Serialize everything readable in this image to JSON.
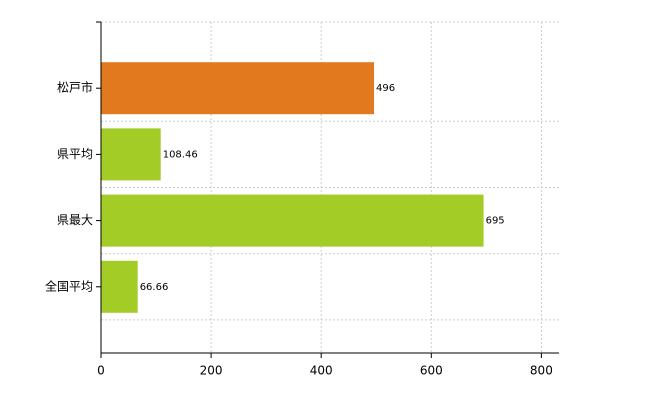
{
  "chart_data": {
    "type": "bar",
    "orientation": "horizontal",
    "categories": [
      "松戸市",
      "県平均",
      "県最大",
      "全国平均"
    ],
    "values": [
      496,
      108.46,
      695,
      66.66
    ],
    "colors": [
      "#e2791f",
      "#a4cc26",
      "#a4cc26",
      "#a4cc26"
    ],
    "xlim": [
      0,
      832
    ],
    "xticks": [
      0,
      200,
      400,
      600,
      800
    ],
    "grid": true
  }
}
